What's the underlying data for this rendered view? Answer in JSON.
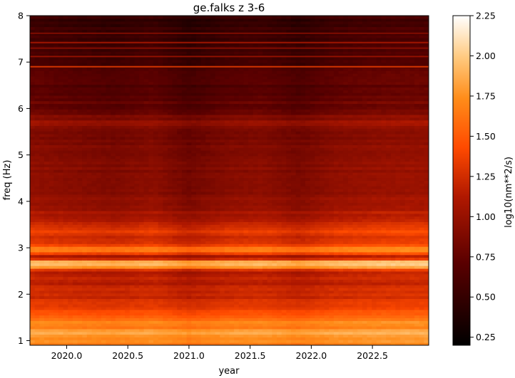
{
  "chart_data": {
    "type": "heatmap",
    "title": "ge.falks z 3-6",
    "xlabel": "year",
    "ylabel": "freq (Hz)",
    "xlim": [
      2019.7,
      2022.96
    ],
    "ylim": [
      0.9,
      8.0
    ],
    "xticks": [
      2020.0,
      2020.5,
      2021.0,
      2021.5,
      2022.0,
      2022.5
    ],
    "xtick_labels": [
      "2020.0",
      "2020.5",
      "2021.0",
      "2021.5",
      "2022.0",
      "2022.5"
    ],
    "yticks": [
      1,
      2,
      3,
      4,
      5,
      6,
      7,
      8
    ],
    "ytick_labels": [
      "1",
      "2",
      "3",
      "4",
      "5",
      "6",
      "7",
      "8"
    ],
    "colormap": "gist_heat",
    "colorbar": {
      "label": "log10(nm**2/s)",
      "range": [
        0.2,
        2.25
      ],
      "ticks": [
        0.25,
        0.5,
        0.75,
        1.0,
        1.25,
        1.5,
        1.75,
        2.0,
        2.25
      ],
      "tick_labels": [
        "0.25",
        "0.50",
        "0.75",
        "1.00",
        "1.25",
        "1.50",
        "1.75",
        "2.00",
        "2.25"
      ]
    },
    "frequency_profile": [
      {
        "freq": 0.9,
        "value": 1.75
      },
      {
        "freq": 1.0,
        "value": 1.72
      },
      {
        "freq": 1.1,
        "value": 1.82
      },
      {
        "freq": 1.2,
        "value": 1.88
      },
      {
        "freq": 1.3,
        "value": 1.65
      },
      {
        "freq": 1.4,
        "value": 1.72
      },
      {
        "freq": 1.5,
        "value": 1.55
      },
      {
        "freq": 1.6,
        "value": 1.45
      },
      {
        "freq": 1.7,
        "value": 1.4
      },
      {
        "freq": 1.8,
        "value": 1.32
      },
      {
        "freq": 2.0,
        "value": 1.25
      },
      {
        "freq": 2.2,
        "value": 1.2
      },
      {
        "freq": 2.4,
        "value": 1.18
      },
      {
        "freq": 2.5,
        "value": 1.12
      },
      {
        "freq": 2.6,
        "value": 1.85
      },
      {
        "freq": 2.7,
        "value": 1.98
      },
      {
        "freq": 2.8,
        "value": 0.95
      },
      {
        "freq": 2.9,
        "value": 1.55
      },
      {
        "freq": 2.97,
        "value": 1.85
      },
      {
        "freq": 3.05,
        "value": 1.45
      },
      {
        "freq": 3.2,
        "value": 1.22
      },
      {
        "freq": 3.4,
        "value": 1.4
      },
      {
        "freq": 3.6,
        "value": 1.15
      },
      {
        "freq": 3.8,
        "value": 1.1
      },
      {
        "freq": 4.0,
        "value": 1.0
      },
      {
        "freq": 4.5,
        "value": 0.98
      },
      {
        "freq": 5.0,
        "value": 0.92
      },
      {
        "freq": 5.5,
        "value": 0.9
      },
      {
        "freq": 5.7,
        "value": 1.02
      },
      {
        "freq": 6.0,
        "value": 0.8
      },
      {
        "freq": 6.5,
        "value": 0.72
      },
      {
        "freq": 7.0,
        "value": 0.66
      },
      {
        "freq": 7.5,
        "value": 0.58
      },
      {
        "freq": 8.0,
        "value": 0.55
      }
    ],
    "time_profile": [
      {
        "year": 2019.7,
        "value": 0.0
      },
      {
        "year": 2020.1,
        "value": -0.05
      },
      {
        "year": 2020.4,
        "value": -0.08
      },
      {
        "year": 2020.7,
        "value": -0.02
      },
      {
        "year": 2021.0,
        "value": -0.14
      },
      {
        "year": 2021.3,
        "value": -0.05
      },
      {
        "year": 2021.6,
        "value": -0.02
      },
      {
        "year": 2021.9,
        "value": -0.1
      },
      {
        "year": 2022.2,
        "value": 0.0
      },
      {
        "year": 2022.6,
        "value": 0.04
      },
      {
        "year": 2022.96,
        "value": 0.05
      }
    ],
    "narrow_lines": [
      {
        "freq": 6.9,
        "value": 1.35
      },
      {
        "freq": 7.12,
        "value": 1.05
      },
      {
        "freq": 7.3,
        "value": 0.95
      },
      {
        "freq": 7.42,
        "value": 1.1
      },
      {
        "freq": 7.62,
        "value": 0.95
      }
    ]
  }
}
